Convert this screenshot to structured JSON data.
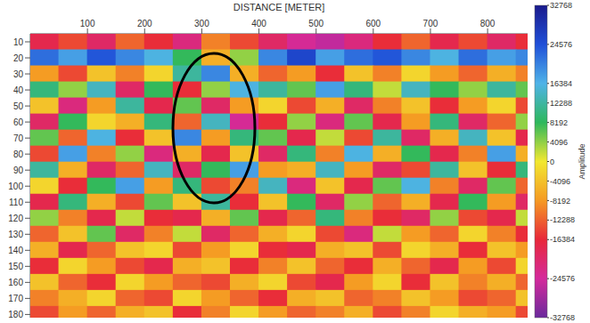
{
  "chart_data": {
    "type": "heatmap",
    "x_label": "DISTANCE [METER]",
    "x": [
      25,
      75,
      125,
      175,
      225,
      275,
      325,
      375,
      425,
      475,
      525,
      575,
      625,
      675,
      725,
      775,
      825,
      875
    ],
    "y": [
      10,
      20,
      30,
      40,
      50,
      60,
      70,
      80,
      90,
      100,
      110,
      120,
      130,
      140,
      150,
      160,
      170,
      180
    ],
    "values": [
      [
        -18000,
        -14000,
        -20000,
        -12000,
        -16000,
        -22000,
        -10000,
        -14000,
        -20000,
        -24000,
        -26000,
        -22000,
        -16000,
        -12000,
        -18000,
        -14000,
        -20000,
        -16000
      ],
      [
        22000,
        18000,
        24000,
        20000,
        16000,
        8000,
        -6000,
        4000,
        20000,
        26000,
        18000,
        22000,
        24000,
        20000,
        16000,
        22000,
        18000,
        20000
      ],
      [
        -8000,
        -14000,
        -4000,
        -10000,
        -2000,
        12000,
        20000,
        -6000,
        -12000,
        -8000,
        -16000,
        -4000,
        -10000,
        -2000,
        -8000,
        -12000,
        -6000,
        -10000
      ],
      [
        10000,
        4000,
        14000,
        -20000,
        8000,
        -16000,
        4000,
        16000,
        12000,
        6000,
        18000,
        10000,
        2000,
        14000,
        8000,
        4000,
        12000,
        6000
      ],
      [
        -4000,
        -22000,
        -8000,
        12000,
        -18000,
        6000,
        -20000,
        -8000,
        -2000,
        -14000,
        -6000,
        -20000,
        -10000,
        -4000,
        -16000,
        -8000,
        -2000,
        -14000
      ],
      [
        -20000,
        8000,
        -2000,
        -6000,
        10000,
        -12000,
        14000,
        -24000,
        -16000,
        4000,
        -22000,
        6000,
        -18000,
        -8000,
        10000,
        -20000,
        -12000,
        4000
      ],
      [
        6000,
        -12000,
        16000,
        -16000,
        -4000,
        20000,
        -8000,
        10000,
        6000,
        -18000,
        2000,
        -14000,
        12000,
        -20000,
        -6000,
        14000,
        -4000,
        -18000
      ],
      [
        -14000,
        18000,
        -10000,
        4000,
        -22000,
        -6000,
        -18000,
        -4000,
        -20000,
        10000,
        -10000,
        16000,
        -6000,
        8000,
        -18000,
        -10000,
        18000,
        -6000
      ],
      [
        12000,
        -6000,
        -20000,
        -12000,
        14000,
        -20000,
        8000,
        18000,
        -8000,
        -6000,
        14000,
        -8000,
        -20000,
        -14000,
        12000,
        -4000,
        -16000,
        10000
      ],
      [
        -2000,
        -16000,
        8000,
        18000,
        -8000,
        10000,
        -14000,
        -10000,
        14000,
        -22000,
        -4000,
        -18000,
        6000,
        16000,
        -10000,
        -20000,
        6000,
        -12000
      ],
      [
        -18000,
        10000,
        -6000,
        -14000,
        6000,
        -4000,
        12000,
        -16000,
        -4000,
        8000,
        -20000,
        4000,
        -12000,
        -6000,
        -18000,
        8000,
        -8000,
        -20000
      ],
      [
        4000,
        -10000,
        -18000,
        2000,
        -16000,
        -18000,
        -6000,
        6000,
        -18000,
        -12000,
        10000,
        -10000,
        -16000,
        -20000,
        4000,
        -14000,
        -18000,
        2000
      ],
      [
        -12000,
        -4000,
        6000,
        -20000,
        -10000,
        2000,
        -20000,
        -12000,
        -6000,
        -2000,
        -14000,
        -22000,
        2000,
        -8000,
        -12000,
        -2000,
        -10000,
        -16000
      ],
      [
        -6000,
        -18000,
        -12000,
        -4000,
        -2000,
        -14000,
        -8000,
        -2000,
        -16000,
        -18000,
        -6000,
        -4000,
        -14000,
        -2000,
        -6000,
        -16000,
        -4000,
        -8000
      ],
      [
        -16000,
        -2000,
        -8000,
        -14000,
        -18000,
        -6000,
        -4000,
        -16000,
        -10000,
        -4000,
        -12000,
        -16000,
        -6000,
        -12000,
        -18000,
        -8000,
        -14000,
        -2000
      ],
      [
        -4000,
        -12000,
        -16000,
        -2000,
        -8000,
        -12000,
        -14000,
        -6000,
        -2000,
        -14000,
        -18000,
        -8000,
        -2000,
        -16000,
        -4000,
        -10000,
        -6000,
        -12000
      ],
      [
        -10000,
        -6000,
        -2000,
        -12000,
        -14000,
        -2000,
        -8000,
        -12000,
        -16000,
        -6000,
        -4000,
        -12000,
        -10000,
        -4000,
        -8000,
        -14000,
        -12000,
        -4000
      ],
      [
        -14000,
        -8000,
        -12000,
        -6000,
        -4000,
        -16000,
        -10000,
        -2000,
        -8000,
        -12000,
        -10000,
        -6000,
        -14000,
        -10000,
        -2000,
        -6000,
        -8000,
        -14000
      ]
    ],
    "xlim": [
      0,
      870
    ],
    "xticks": [
      100,
      200,
      300,
      400,
      500,
      600,
      700,
      800
    ],
    "ylim": [
      5,
      182
    ],
    "yticks": [
      10,
      20,
      30,
      40,
      50,
      60,
      70,
      80,
      90,
      100,
      110,
      120,
      130,
      140,
      150,
      160,
      170,
      180
    ],
    "colorbar": {
      "label": "Amplitude",
      "range": [
        -32768,
        32768
      ],
      "ticks": [
        32768,
        24576,
        16384,
        12288,
        8192,
        4096,
        0,
        -4096,
        -8192,
        -12288,
        -16384,
        -24576,
        -32768
      ]
    }
  }
}
